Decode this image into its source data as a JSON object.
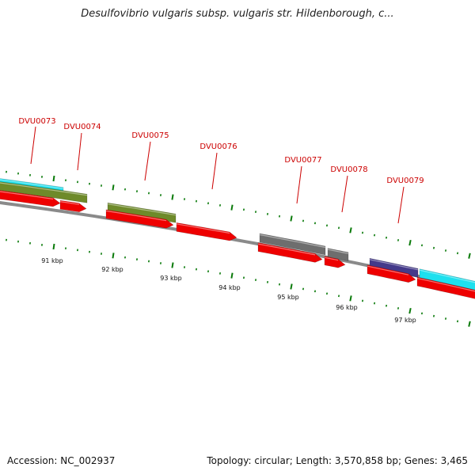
{
  "title": "Desulfovibrio vulgaris subsp. vulgaris str. Hildenborough, c...",
  "footer": {
    "accession": "Accession: NC_002937",
    "summary": "Topology: circular; Length: 3,570,858 bp; Genes: 3,465"
  },
  "colors": {
    "backbone": "#8a8a8a",
    "gene_label": "#cc0000",
    "tick": "#0a7a0a",
    "cds_forward": "#ee0000",
    "olive": "#6e8a2a",
    "cyan": "#1ee0ee",
    "gray": "#6e6e6e",
    "indigo": "#443a8a"
  },
  "gene_labels": [
    "DVU0073",
    "DVU0074",
    "DVU0075",
    "DVU0076",
    "DVU0077",
    "DVU0078",
    "DVU0079"
  ],
  "kbp_labels": [
    "91 kbp",
    "92 kbp",
    "93 kbp",
    "94 kbp",
    "95 kbp",
    "96 kbp",
    "97 kbp"
  ]
}
